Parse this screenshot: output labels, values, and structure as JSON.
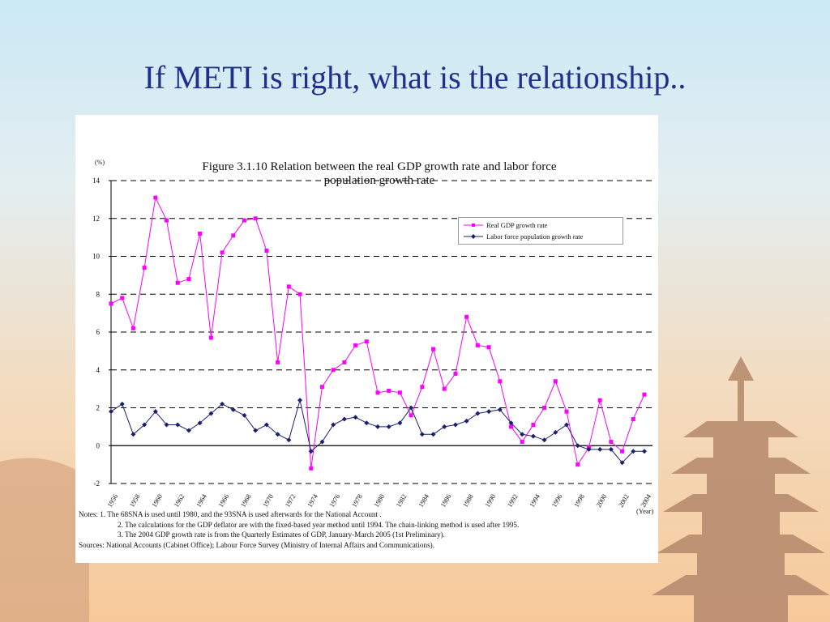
{
  "slide": {
    "title": "If METI is right, what is the relationship.."
  },
  "figure": {
    "title_line1": "Figure 3.1.10 Relation between the real GDP growth rate and labor force",
    "title_line2": "population growth rate",
    "y_unit": "(%)",
    "x_unit": "(Year)",
    "notes": [
      "Notes: 1. The 68SNA is used until 1980, and the 93SNA is used afterwards for the National Account .",
      "2. The calculations for the GDP deflator are with the fixed-based year method until 1994. The chain-linking method is used after 1995.",
      "3. The 2004 GDP growth rate is from the Quarterly Estimates of GDP, January-March 2005 (1st Preliminary).",
      "Sources: National Accounts  (Cabinet Office); Labour Force Survey  (Ministry of Internal Affairs and Communications)."
    ]
  },
  "chart_data": {
    "type": "line",
    "x": [
      1956,
      1957,
      1958,
      1959,
      1960,
      1961,
      1962,
      1963,
      1964,
      1965,
      1966,
      1967,
      1968,
      1969,
      1970,
      1971,
      1972,
      1973,
      1974,
      1975,
      1976,
      1977,
      1978,
      1979,
      1980,
      1981,
      1982,
      1983,
      1984,
      1985,
      1986,
      1987,
      1988,
      1989,
      1990,
      1991,
      1992,
      1993,
      1994,
      1995,
      1996,
      1997,
      1998,
      1999,
      2000,
      2001,
      2002,
      2003,
      2004
    ],
    "x_tick_labels": [
      "1956",
      "1958",
      "1960",
      "1962",
      "1964",
      "1966",
      "1968",
      "1970",
      "1972",
      "1974",
      "1976",
      "1978",
      "1980",
      "1982",
      "1984",
      "1986",
      "1988",
      "1990",
      "1992",
      "1994",
      "1996",
      "1998",
      "2000",
      "2002",
      "2004"
    ],
    "ylim": [
      -2,
      14
    ],
    "y_ticks": [
      -2,
      0,
      2,
      4,
      6,
      8,
      10,
      12,
      14
    ],
    "grid": "dashed horizontal",
    "legend_position": "top-right",
    "series": [
      {
        "name": "Real GDP growth rate",
        "color": "#ff00ff",
        "marker": "square",
        "values": [
          7.5,
          7.8,
          6.2,
          9.4,
          13.1,
          11.9,
          8.6,
          8.8,
          11.2,
          5.7,
          10.2,
          11.1,
          11.9,
          12.0,
          10.3,
          4.4,
          8.4,
          8.0,
          -1.2,
          3.1,
          4.0,
          4.4,
          5.3,
          5.5,
          2.8,
          2.9,
          2.8,
          1.6,
          3.1,
          5.1,
          3.0,
          3.8,
          6.8,
          5.3,
          5.2,
          3.4,
          1.0,
          0.2,
          1.1,
          2.0,
          3.4,
          1.8,
          -1.0,
          -0.1,
          2.4,
          0.2,
          -0.3,
          1.4,
          2.7
        ]
      },
      {
        "name": "Labor force population growth rate",
        "color": "#1a1f6e",
        "marker": "diamond",
        "values": [
          1.8,
          2.2,
          0.6,
          1.1,
          1.8,
          1.1,
          1.1,
          0.8,
          1.2,
          1.7,
          2.2,
          1.9,
          1.6,
          0.8,
          1.1,
          0.6,
          0.3,
          2.4,
          -0.3,
          0.2,
          1.1,
          1.4,
          1.5,
          1.2,
          1.0,
          1.0,
          1.2,
          2.0,
          0.6,
          0.6,
          1.0,
          1.1,
          1.3,
          1.7,
          1.8,
          1.9,
          1.2,
          0.6,
          0.5,
          0.3,
          0.7,
          1.1,
          0.0,
          -0.2,
          -0.2,
          -0.2,
          -0.9,
          -0.3,
          -0.3
        ]
      }
    ]
  }
}
